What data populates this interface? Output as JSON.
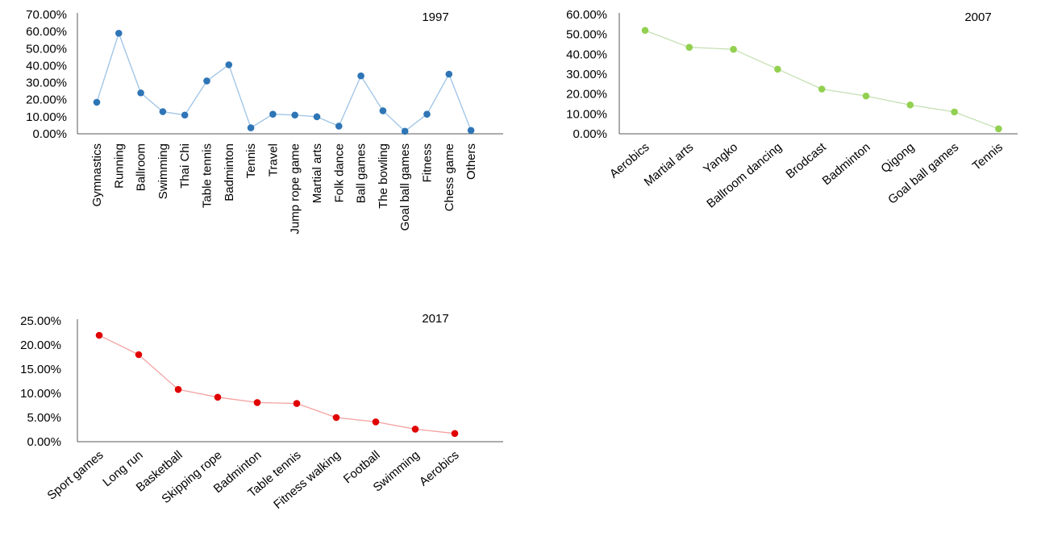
{
  "chart_data": [
    {
      "type": "line",
      "title": "1997",
      "color": "#2E75B6",
      "line_color": "#9DC3E6",
      "categories": [
        "Gymnastics",
        "Running",
        "Ballroom",
        "Swimming",
        "Thai Chi",
        "Table tennis",
        "Badminton",
        "Tennis",
        "Travel",
        "Jump rope game",
        "Martial arts",
        "Folk dance",
        "Ball games",
        "The bowling",
        "Goal ball games",
        "Fitness",
        "Chess game",
        "Others"
      ],
      "values": [
        18.5,
        59.0,
        24.0,
        13.0,
        11.0,
        31.0,
        40.5,
        3.5,
        11.5,
        11.0,
        10.0,
        4.5,
        34.0,
        13.5,
        1.5,
        11.5,
        35.0,
        2.0
      ],
      "y_ticks": [
        "0.00%",
        "10.00%",
        "20.00%",
        "30.00%",
        "40.00%",
        "50.00%",
        "60.00%",
        "70.00%"
      ],
      "ylim": [
        0,
        70
      ],
      "label_rotation": "vertical",
      "grid": false,
      "legend": false
    },
    {
      "type": "line",
      "title": "2007",
      "color": "#92D050",
      "line_color": "#C5E0B4",
      "categories": [
        "Aerobics",
        "Martial arts",
        "Yangko",
        "Ballroom dancing",
        "Brodcast",
        "Badminton",
        "Qigong",
        "Goal ball games",
        "Tennis"
      ],
      "values": [
        52.0,
        43.5,
        42.5,
        32.5,
        22.5,
        19.0,
        14.5,
        11.0,
        2.5
      ],
      "y_ticks": [
        "0.00%",
        "10.00%",
        "20.00%",
        "30.00%",
        "40.00%",
        "50.00%",
        "60.00%"
      ],
      "ylim": [
        0,
        60
      ],
      "label_rotation": "diagonal",
      "grid": false,
      "legend": false
    },
    {
      "type": "line",
      "title": "2017",
      "color": "#E00000",
      "line_color": "#F4A0A0",
      "categories": [
        "Sport games",
        "Long run",
        "Basketball",
        "Skipping rope",
        "Badminton",
        "Table tennis",
        "Fitness walking",
        "Football",
        "Swimming",
        "Aerobics"
      ],
      "values": [
        22.0,
        18.0,
        10.8,
        9.2,
        8.1,
        7.9,
        5.0,
        4.1,
        2.6,
        1.7
      ],
      "y_ticks": [
        "0.00%",
        "5.00%",
        "10.00%",
        "15.00%",
        "20.00%",
        "25.00%"
      ],
      "ylim": [
        0,
        25
      ],
      "label_rotation": "diagonal",
      "grid": false,
      "legend": false
    }
  ]
}
